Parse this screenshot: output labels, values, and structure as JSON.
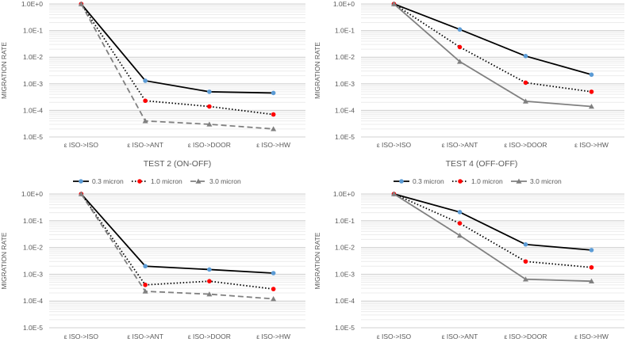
{
  "chart_data": [
    {
      "type": "line",
      "title": "",
      "xlabel": "",
      "ylabel": "MIGRATION RATE",
      "yscale": "log",
      "ylim": [
        1e-05,
        1
      ],
      "y_tick_labels": [
        "1.0E+0",
        "1.0E-1",
        "1.0E-2",
        "1.0E-3",
        "1.0E-4",
        "1.0E-5"
      ],
      "categories": [
        "ε ISO->ISO",
        "ε ISO->ANT",
        "ε ISO->DOOR",
        "ε ISO->HW"
      ],
      "grid": true,
      "legend": "none",
      "series": [
        {
          "name": "0.3 micron",
          "values": [
            1.0,
            0.0013,
            0.0005,
            0.00045
          ]
        },
        {
          "name": "1.0 micron",
          "values": [
            1.0,
            0.00023,
            0.00014,
            7e-05
          ]
        },
        {
          "name": "3.0 micron",
          "values": [
            1.0,
            4e-05,
            3e-05,
            2e-05
          ]
        }
      ]
    },
    {
      "type": "line",
      "title": "",
      "xlabel": "",
      "ylabel": "MIGRATION RATE",
      "yscale": "log",
      "ylim": [
        1e-05,
        1
      ],
      "y_tick_labels": [
        "1.0E+0",
        "1.0E-1",
        "1.0E-2",
        "1.0E-3",
        "1.0E-4",
        "1.0E-5"
      ],
      "categories": [
        "ε ISO->ISO",
        "ε ISO->ANT",
        "ε ISO->DOOR",
        "ε ISO->HW"
      ],
      "grid": true,
      "legend": "none",
      "series": [
        {
          "name": "0.3 micron",
          "values": [
            1.0,
            0.11,
            0.011,
            0.0022
          ]
        },
        {
          "name": "1.0 micron",
          "values": [
            1.0,
            0.024,
            0.0011,
            0.0005
          ]
        },
        {
          "name": "3.0 micron",
          "values": [
            1.0,
            0.0068,
            0.00022,
            0.00014
          ]
        }
      ]
    },
    {
      "type": "line",
      "title": "TEST 2 (ON-OFF)",
      "xlabel": "",
      "ylabel": "MIGRATION RATE",
      "yscale": "log",
      "ylim": [
        1e-05,
        1
      ],
      "y_tick_labels": [
        "1.0E+0",
        "1.0E-1",
        "1.0E-2",
        "1.0E-3",
        "1.0E-4",
        "1.0E-5"
      ],
      "categories": [
        "ε ISO->ISO",
        "ε ISO->ANT",
        "ε ISO->DOOR",
        "ε ISO->HW"
      ],
      "grid": true,
      "legend": "top",
      "series": [
        {
          "name": "0.3 micron",
          "values": [
            1.0,
            0.002,
            0.0015,
            0.0011
          ]
        },
        {
          "name": "1.0 micron",
          "values": [
            1.0,
            0.0004,
            0.00055,
            0.00028
          ]
        },
        {
          "name": "3.0 micron",
          "values": [
            1.0,
            0.00023,
            0.00018,
            0.00012
          ]
        }
      ]
    },
    {
      "type": "line",
      "title": "TEST 4 (OFF-OFF)",
      "xlabel": "",
      "ylabel": "MIGRATION RATE",
      "yscale": "log",
      "ylim": [
        1e-05,
        1
      ],
      "y_tick_labels": [
        "1.0E+0",
        "1.0E-1",
        "1.0E-2",
        "1.0E-3",
        "1.0E-4",
        "1.0E-5"
      ],
      "categories": [
        "ε ISO->ISO",
        "ε ISO->ANT",
        "ε ISO->DOOR",
        "ε ISO->HW"
      ],
      "grid": true,
      "legend": "top",
      "series": [
        {
          "name": "0.3 micron",
          "values": [
            1.0,
            0.21,
            0.013,
            0.008
          ]
        },
        {
          "name": "1.0 micron",
          "values": [
            1.0,
            0.08,
            0.003,
            0.0018
          ]
        },
        {
          "name": "3.0 micron",
          "values": [
            1.0,
            0.028,
            0.00065,
            0.00055
          ]
        }
      ]
    }
  ],
  "series_styles": [
    {
      "line_color": "#000000",
      "marker_color": "#5b9bd5",
      "dash": "solid",
      "marker": "circle"
    },
    {
      "line_color": "#000000",
      "marker_color": "#ff0000",
      "dash": "dotted",
      "marker": "circle"
    },
    {
      "line_color": "#808080",
      "marker_color": "#808080",
      "dash": "dashed",
      "marker": "triangle"
    },
    {
      "line_color": "#808080",
      "marker_color": "#808080",
      "dash": "solid",
      "marker": "triangle"
    }
  ]
}
